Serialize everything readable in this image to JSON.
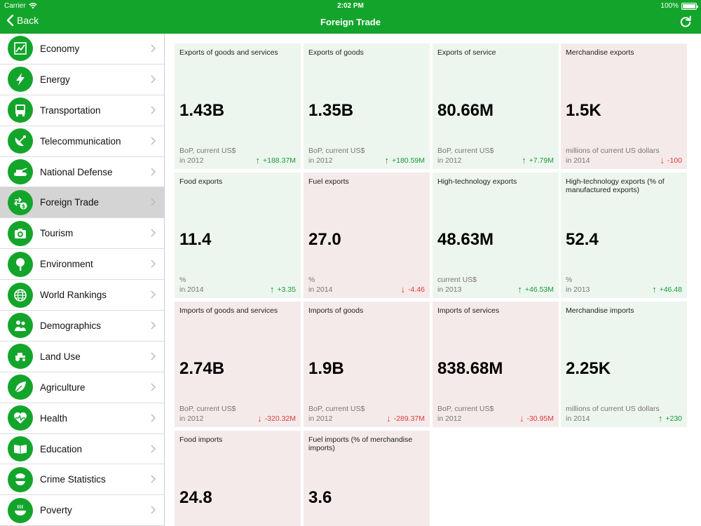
{
  "status_bar": {
    "carrier": "Carrier",
    "time": "2:02 PM",
    "battery": "100%"
  },
  "nav": {
    "back_label": "Back",
    "title": "Foreign Trade"
  },
  "colors": {
    "brand_green": "#13a52b",
    "up_bg": "#edf6ee",
    "down_bg": "#f5eaea",
    "up_text": "#169a3a",
    "down_text": "#e03a3a"
  },
  "sidebar": {
    "items": [
      {
        "label": "Economy",
        "icon": "economy-chart-icon",
        "active": false
      },
      {
        "label": "Energy",
        "icon": "lightning-icon",
        "active": false
      },
      {
        "label": "Transportation",
        "icon": "bus-icon",
        "active": false
      },
      {
        "label": "Telecommunication",
        "icon": "satellite-dish-icon",
        "active": false
      },
      {
        "label": "National Defense",
        "icon": "tank-icon",
        "active": false
      },
      {
        "label": "Foreign Trade",
        "icon": "exchange-dollar-icon",
        "active": true
      },
      {
        "label": "Tourism",
        "icon": "camera-icon",
        "active": false
      },
      {
        "label": "Environment",
        "icon": "tree-icon",
        "active": false
      },
      {
        "label": "World Rankings",
        "icon": "globe-icon",
        "active": false
      },
      {
        "label": "Demographics",
        "icon": "people-icon",
        "active": false
      },
      {
        "label": "Land Use",
        "icon": "tractor-icon",
        "active": false
      },
      {
        "label": "Agriculture",
        "icon": "leaf-icon",
        "active": false
      },
      {
        "label": "Health",
        "icon": "heart-pulse-icon",
        "active": false
      },
      {
        "label": "Education",
        "icon": "book-icon",
        "active": false
      },
      {
        "label": "Crime Statistics",
        "icon": "thief-mask-icon",
        "active": false
      },
      {
        "label": "Poverty",
        "icon": "bowl-icon",
        "active": false
      }
    ]
  },
  "cards": [
    {
      "title": "Exports of goods and services",
      "value": "1.43B",
      "unit": "BoP, current US$",
      "year": "in 2012",
      "delta": "+188.37M",
      "trend": "up"
    },
    {
      "title": "Exports of goods",
      "value": "1.35B",
      "unit": "BoP, current US$",
      "year": "in 2012",
      "delta": "+180.59M",
      "trend": "up"
    },
    {
      "title": "Exports of service",
      "value": "80.66M",
      "unit": "BoP, current US$",
      "year": "in 2012",
      "delta": "+7.79M",
      "trend": "up"
    },
    {
      "title": "Merchandise exports",
      "value": "1.5K",
      "unit": "millions of current US dollars",
      "year": "in 2014",
      "delta": "-100",
      "trend": "down"
    },
    {
      "title": "Food exports",
      "value": "11.4",
      "unit": "%",
      "year": "in 2014",
      "delta": "+3.35",
      "trend": "up"
    },
    {
      "title": "Fuel exports",
      "value": "27.0",
      "unit": "%",
      "year": "in 2014",
      "delta": "-4.46",
      "trend": "down"
    },
    {
      "title": "High-technology exports",
      "value": "48.63M",
      "unit": "current US$",
      "year": "in 2013",
      "delta": "+46.53M",
      "trend": "up"
    },
    {
      "title": "High-technology exports (% of manufactured exports)",
      "value": "52.4",
      "unit": "%",
      "year": "in 2013",
      "delta": "+46.48",
      "trend": "up"
    },
    {
      "title": "Imports of goods and services",
      "value": "2.74B",
      "unit": "BoP, current US$",
      "year": "in 2012",
      "delta": "-320.32M",
      "trend": "down"
    },
    {
      "title": "Imports of goods",
      "value": "1.9B",
      "unit": "BoP, current US$",
      "year": "in 2012",
      "delta": "-289.37M",
      "trend": "down"
    },
    {
      "title": "Imports of services",
      "value": "838.68M",
      "unit": "BoP, current US$",
      "year": "in 2012",
      "delta": "-30.95M",
      "trend": "down"
    },
    {
      "title": "Merchandise imports",
      "value": "2.25K",
      "unit": "millions of current US dollars",
      "year": "in 2014",
      "delta": "+230",
      "trend": "up"
    },
    {
      "title": "Food imports",
      "value": "24.8",
      "unit": "",
      "year": "",
      "delta": "",
      "trend": "down"
    },
    {
      "title": "Fuel imports (% of merchandise imports)",
      "value": "3.6",
      "unit": "",
      "year": "",
      "delta": "",
      "trend": "down"
    }
  ]
}
